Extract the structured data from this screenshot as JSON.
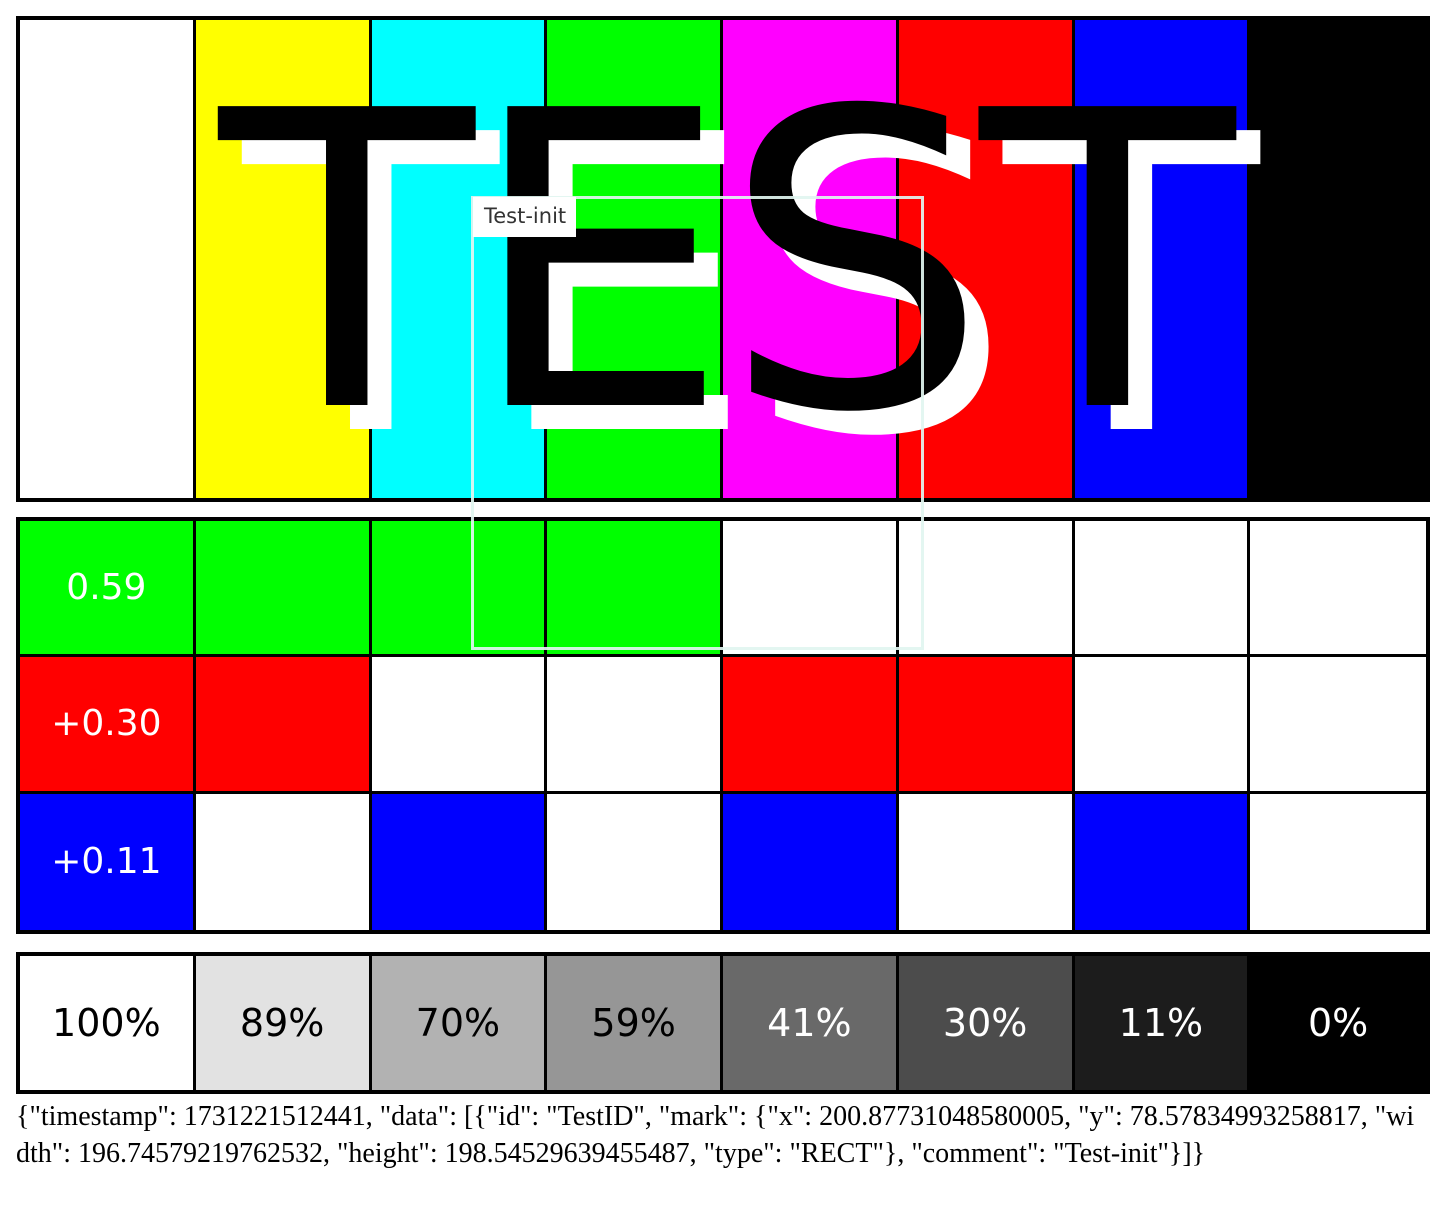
{
  "test_word": "TEST",
  "annotation": {
    "label": "Test-init"
  },
  "top_bars": [
    {
      "name": "white",
      "color": "#ffffff"
    },
    {
      "name": "yellow",
      "color": "#ffff00"
    },
    {
      "name": "cyan",
      "color": "#00ffff"
    },
    {
      "name": "green",
      "color": "#00ff00"
    },
    {
      "name": "magenta",
      "color": "#ff00ff"
    },
    {
      "name": "red",
      "color": "#ff0000"
    },
    {
      "name": "blue",
      "color": "#0000ff"
    },
    {
      "name": "black",
      "color": "#000000"
    }
  ],
  "weight_rows": [
    {
      "label": "0.59",
      "color": "#00ff00",
      "pattern": [
        1,
        1,
        1,
        1,
        0,
        0,
        0,
        0
      ]
    },
    {
      "label": "+0.30",
      "color": "#ff0000",
      "pattern": [
        1,
        1,
        0,
        0,
        1,
        1,
        0,
        0
      ]
    },
    {
      "label": "+0.11",
      "color": "#0000ff",
      "pattern": [
        1,
        0,
        1,
        0,
        1,
        0,
        1,
        0
      ]
    }
  ],
  "grey_steps": [
    {
      "label": "100%",
      "color": "#ffffff",
      "text_color": "#000000"
    },
    {
      "label": "89%",
      "color": "#e2e2e2",
      "text_color": "#000000"
    },
    {
      "label": "70%",
      "color": "#b2b2b2",
      "text_color": "#000000"
    },
    {
      "label": "59%",
      "color": "#969696",
      "text_color": "#000000"
    },
    {
      "label": "41%",
      "color": "#696969",
      "text_color": "#ffffff"
    },
    {
      "label": "30%",
      "color": "#4c4c4c",
      "text_color": "#ffffff"
    },
    {
      "label": "11%",
      "color": "#1c1c1c",
      "text_color": "#ffffff"
    },
    {
      "label": "0%",
      "color": "#000000",
      "text_color": "#ffffff"
    }
  ],
  "json_caption": "{\"timestamp\": 1731221512441, \"data\": [{\"id\": \"TestID\", \"mark\": {\"x\": 200.87731048580005, \"y\": 78.57834993258817, \"width\": 196.74579219762532, \"height\": 198.54529639455487, \"type\": \"RECT\"}, \"comment\": \"Test-init\"}]}"
}
